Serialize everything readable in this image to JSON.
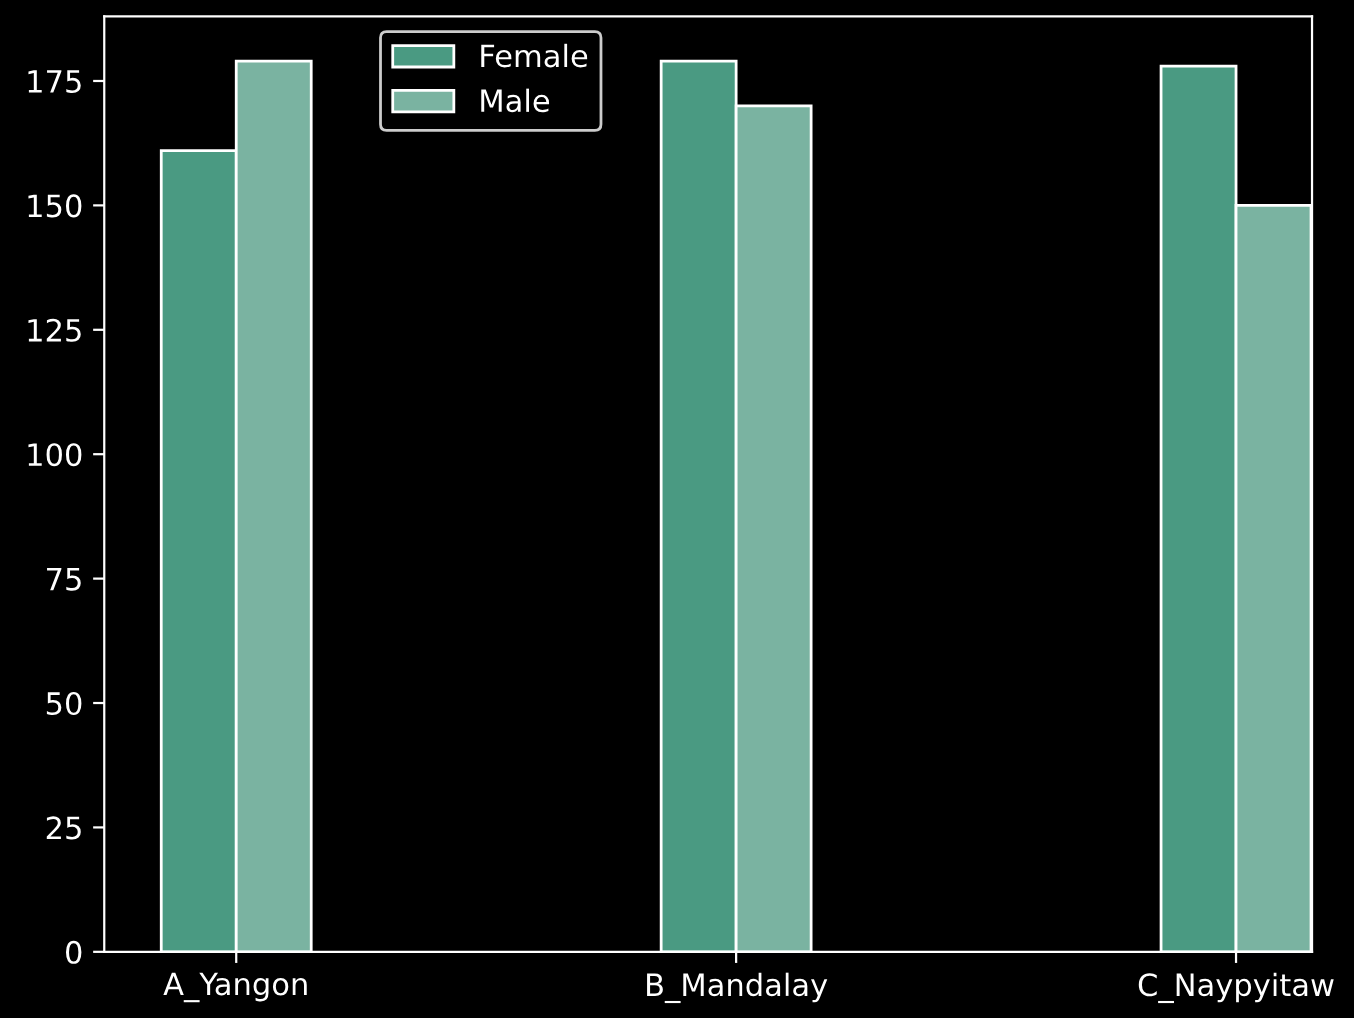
{
  "chart_data": {
    "type": "bar",
    "categories": [
      "A_Yangon",
      "B_Mandalay",
      "C_Naypyitaw"
    ],
    "series": [
      {
        "name": "Female",
        "color": "#4a9a82",
        "values": [
          161,
          179,
          178
        ]
      },
      {
        "name": "Male",
        "color": "#7ab3a1",
        "values": [
          179,
          170,
          150
        ]
      }
    ],
    "ylim": [
      0,
      188
    ],
    "yticks": [
      0,
      25,
      50,
      75,
      100,
      125,
      150,
      175
    ],
    "grid": false,
    "legend": "top"
  }
}
